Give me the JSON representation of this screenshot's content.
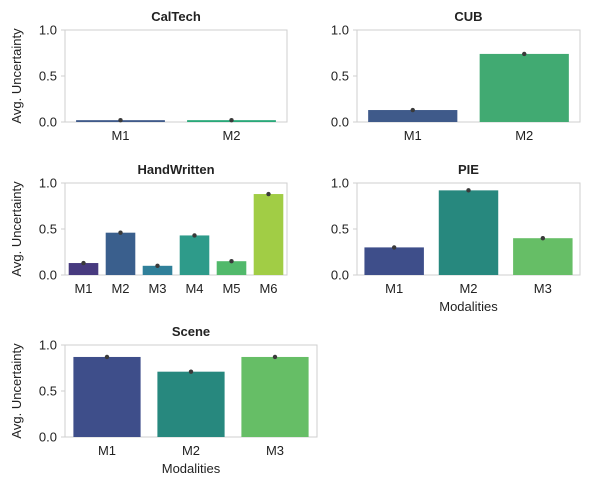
{
  "chart_data": [
    {
      "type": "bar",
      "title": "CalTech",
      "categories": [
        "M1",
        "M2"
      ],
      "values": [
        0.02,
        0.02
      ],
      "errors": [
        0.005,
        0.005
      ],
      "colors": [
        "#3f5a8a",
        "#29a879"
      ],
      "xlabel": "",
      "ylabel": "Avg. Uncertainty",
      "ylim": [
        0,
        1.0
      ],
      "yticks": [
        "0.0",
        "0.5",
        "1.0"
      ],
      "grid": false
    },
    {
      "type": "bar",
      "title": "CUB",
      "categories": [
        "M1",
        "M2"
      ],
      "values": [
        0.13,
        0.74
      ],
      "errors": [
        0.01,
        0.02
      ],
      "colors": [
        "#3f5a8a",
        "#41aa72"
      ],
      "xlabel": "",
      "ylabel": "",
      "ylim": [
        0,
        1.0
      ],
      "yticks": [
        "0.0",
        "0.5",
        "1.0"
      ],
      "grid": false
    },
    {
      "type": "bar",
      "title": "HandWritten",
      "categories": [
        "M1",
        "M2",
        "M3",
        "M4",
        "M5",
        "M6"
      ],
      "values": [
        0.13,
        0.46,
        0.1,
        0.43,
        0.15,
        0.88
      ],
      "errors": [
        0.01,
        0.02,
        0.01,
        0.02,
        0.01,
        0.01
      ],
      "colors": [
        "#473a7f",
        "#3a5f8d",
        "#30809a",
        "#2e9b8a",
        "#51b96b",
        "#a1cd45"
      ],
      "xlabel": "",
      "ylabel": "Avg. Uncertainty",
      "ylim": [
        0,
        1.0
      ],
      "yticks": [
        "0.0",
        "0.5",
        "1.0"
      ],
      "grid": false
    },
    {
      "type": "bar",
      "title": "PIE",
      "categories": [
        "M1",
        "M2",
        "M3"
      ],
      "values": [
        0.3,
        0.92,
        0.4
      ],
      "errors": [
        0.015,
        0.01,
        0.02
      ],
      "colors": [
        "#3e4e8a",
        "#27887e",
        "#66be66"
      ],
      "xlabel": "Modalities",
      "ylabel": "",
      "ylim": [
        0,
        1.0
      ],
      "yticks": [
        "0.0",
        "0.5",
        "1.0"
      ],
      "grid": false
    },
    {
      "type": "bar",
      "title": "Scene",
      "categories": [
        "M1",
        "M2",
        "M3"
      ],
      "values": [
        0.87,
        0.71,
        0.87
      ],
      "errors": [
        0.01,
        0.01,
        0.01
      ],
      "colors": [
        "#3e4e8a",
        "#27887e",
        "#66be66"
      ],
      "xlabel": "Modalities",
      "ylabel": "Avg. Uncertainty",
      "ylim": [
        0,
        1.0
      ],
      "yticks": [
        "0.0",
        "0.5",
        "1.0"
      ],
      "grid": false
    }
  ]
}
